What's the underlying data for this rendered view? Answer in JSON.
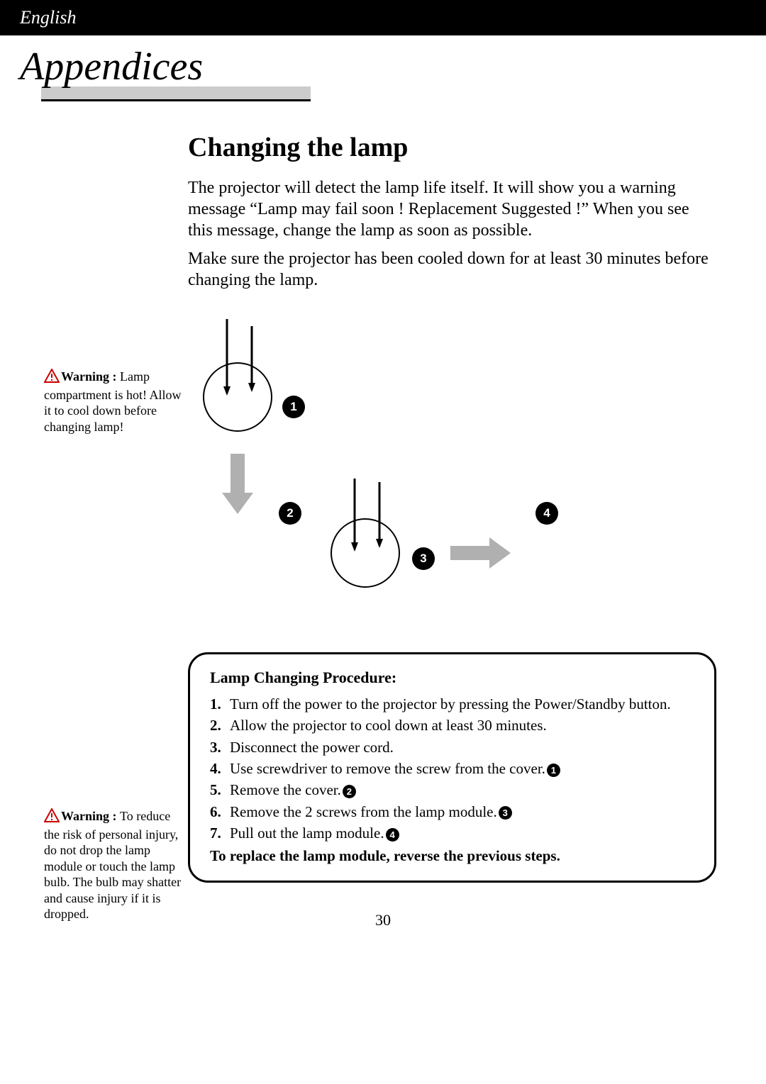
{
  "header": {
    "language": "English"
  },
  "title": "Appendices",
  "section_heading": "Changing the lamp",
  "paragraphs": {
    "p1": "The projector will detect the lamp life itself.  It will show you a warning message “Lamp may fail soon ! Replacement Suggested !” When you see this message, change the lamp as soon as possible.",
    "p2": "Make sure the projector has been cooled down for at least 30 minutes before changing the lamp."
  },
  "warnings": {
    "w1_label": "Warning : ",
    "w1_text": "Lamp compartment is hot! Allow it to cool down before changing lamp!",
    "w2_label": "Warning : ",
    "w2_text": "To reduce the risk of personal injury, do not drop the lamp module or touch the lamp bulb. The bulb may shatter and cause injury if it is dropped."
  },
  "diagram": {
    "badges": {
      "b1": "1",
      "b2": "2",
      "b3": "3",
      "b4": "4"
    },
    "colors": {
      "badge_bg": "#000000",
      "badge_fg": "#ffffff",
      "arrow_gray": "#b0b0b0",
      "line_black": "#000000"
    }
  },
  "procedure": {
    "title": "Lamp Changing Procedure:",
    "steps": [
      {
        "n": "1.",
        "t": "Turn off the power to the projector by pressing the Power/Standby button."
      },
      {
        "n": "2.",
        "t": "Allow the projector to cool down at least 30 minutes."
      },
      {
        "n": "3.",
        "t": "Disconnect the power cord."
      },
      {
        "n": "4.",
        "t": "Use screwdriver to remove the screw from the cover.",
        "ref": "1"
      },
      {
        "n": "5.",
        "t": "Remove the cover.",
        "ref": "2"
      },
      {
        "n": "6.",
        "t": "Remove the 2 screws from the lamp module.",
        "ref": "3"
      },
      {
        "n": "7.",
        "t": "Pull out the lamp module.",
        "ref": "4"
      }
    ],
    "footer": "To replace the lamp module, reverse the previous steps."
  },
  "page_number": "30"
}
